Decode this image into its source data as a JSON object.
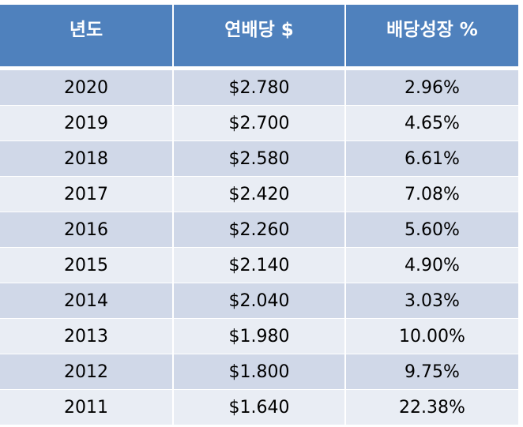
{
  "table": {
    "headers": [
      "년도",
      "연배당 $",
      "배당성장 %"
    ],
    "rows": [
      [
        "2020",
        "$2.780",
        "2.96%"
      ],
      [
        "2019",
        "$2.700",
        "4.65%"
      ],
      [
        "2018",
        "$2.580",
        "6.61%"
      ],
      [
        "2017",
        "$2.420",
        "7.08%"
      ],
      [
        "2016",
        "$2.260",
        "5.60%"
      ],
      [
        "2015",
        "$2.140",
        "4.90%"
      ],
      [
        "2014",
        "$2.040",
        "3.03%"
      ],
      [
        "2013",
        "$1.980",
        "10.00%"
      ],
      [
        "2012",
        "$1.800",
        "9.75%"
      ],
      [
        "2011",
        "$1.640",
        "22.38%"
      ]
    ],
    "colors": {
      "header_bg": "#4f81bd",
      "row_dark": "#d0d8e8",
      "row_light": "#e9edf4"
    }
  }
}
